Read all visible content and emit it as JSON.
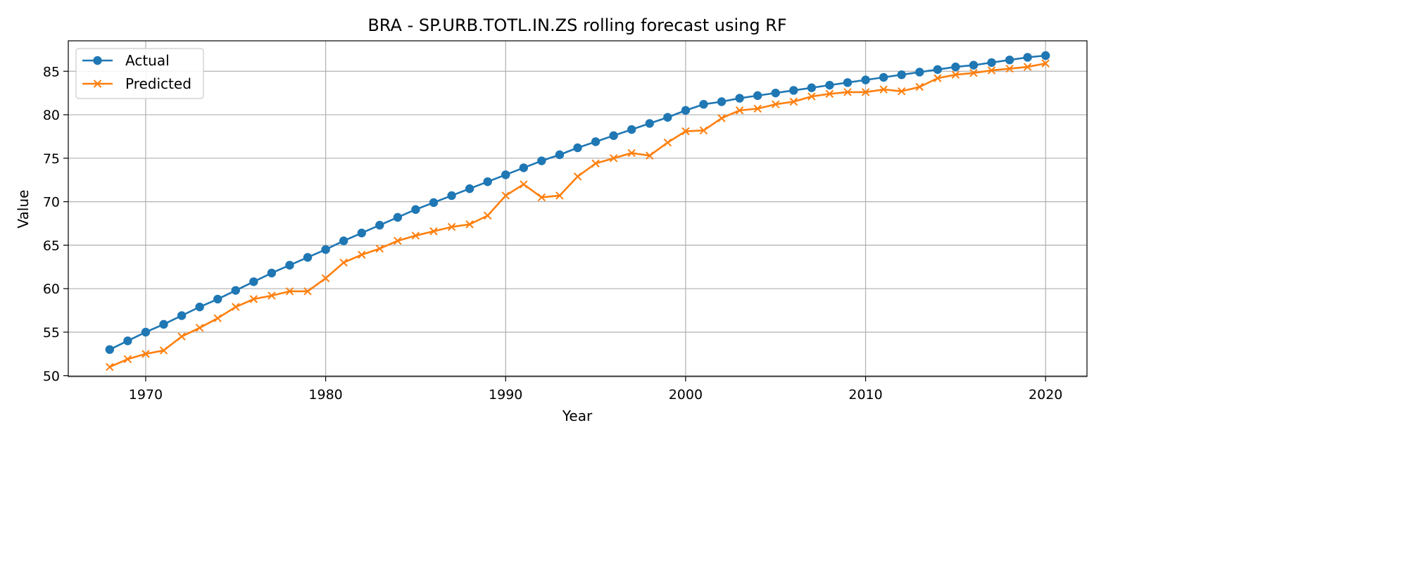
{
  "chart_data": {
    "type": "line",
    "title": "BRA - SP.URB.TOTL.IN.ZS rolling forecast using RF",
    "xlabel": "Year",
    "ylabel": "Value",
    "xlim": [
      1965.7,
      2022.3
    ],
    "ylim": [
      49.9,
      88.5
    ],
    "xticks": [
      1970,
      1980,
      1990,
      2000,
      2010,
      2020
    ],
    "yticks": [
      50,
      55,
      60,
      65,
      70,
      75,
      80,
      85
    ],
    "grid": true,
    "legend_position": "top-left",
    "x": [
      1968,
      1969,
      1970,
      1971,
      1972,
      1973,
      1974,
      1975,
      1976,
      1977,
      1978,
      1979,
      1980,
      1981,
      1982,
      1983,
      1984,
      1985,
      1986,
      1987,
      1988,
      1989,
      1990,
      1991,
      1992,
      1993,
      1994,
      1995,
      1996,
      1997,
      1998,
      1999,
      2000,
      2001,
      2002,
      2003,
      2004,
      2005,
      2006,
      2007,
      2008,
      2009,
      2010,
      2011,
      2012,
      2013,
      2014,
      2015,
      2016,
      2017,
      2018,
      2019,
      2020
    ],
    "series": [
      {
        "name": "Actual",
        "color": "#1f77b4",
        "marker": "circle",
        "values": [
          53.0,
          54.0,
          55.0,
          55.9,
          56.9,
          57.9,
          58.8,
          59.8,
          60.8,
          61.8,
          62.7,
          63.6,
          64.5,
          65.5,
          66.4,
          67.3,
          68.2,
          69.1,
          69.9,
          70.7,
          71.5,
          72.3,
          73.1,
          73.9,
          74.7,
          75.4,
          76.2,
          76.9,
          77.6,
          78.3,
          79.0,
          79.7,
          80.5,
          81.2,
          81.5,
          81.9,
          82.2,
          82.5,
          82.8,
          83.1,
          83.4,
          83.7,
          84.0,
          84.3,
          84.6,
          84.9,
          85.2,
          85.5,
          85.7,
          86.0,
          86.3,
          86.6,
          86.8
        ]
      },
      {
        "name": "Predicted",
        "color": "#ff7f0e",
        "marker": "x",
        "values": [
          51.0,
          51.9,
          52.5,
          52.9,
          54.5,
          55.5,
          56.6,
          57.9,
          58.8,
          59.2,
          59.7,
          59.7,
          61.2,
          63.0,
          63.9,
          64.6,
          65.5,
          66.1,
          66.6,
          67.1,
          67.4,
          68.4,
          70.7,
          72.0,
          70.5,
          70.7,
          72.9,
          74.4,
          75.0,
          75.6,
          75.3,
          76.8,
          78.1,
          78.2,
          79.6,
          80.5,
          80.7,
          81.2,
          81.5,
          82.1,
          82.4,
          82.6,
          82.6,
          82.9,
          82.7,
          83.2,
          84.2,
          84.6,
          84.8,
          85.1,
          85.3,
          85.5,
          85.9
        ]
      }
    ]
  }
}
